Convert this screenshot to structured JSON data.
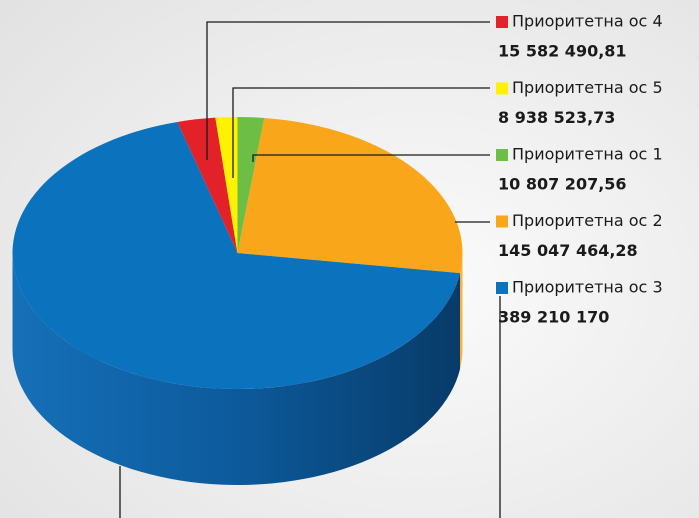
{
  "chart_data": {
    "type": "pie",
    "categories": [
      "Приоритетна ос 1",
      "Приоритетна ос 2",
      "Приоритетна ос 3",
      "Приоритетна ос 4",
      "Приоритетна ос 5"
    ],
    "values": [
      10807207.56,
      145047464.28,
      389210170,
      15582490.81,
      8938523.73
    ],
    "value_labels": [
      "10 807 207,56",
      "145 047 464,28",
      "389 210 170",
      "15 582 490,81",
      "8 938 523,73"
    ],
    "colors": [
      "#6dbe45",
      "#f9a61a",
      "#0b72bd",
      "#e32129",
      "#fff200"
    ]
  }
}
